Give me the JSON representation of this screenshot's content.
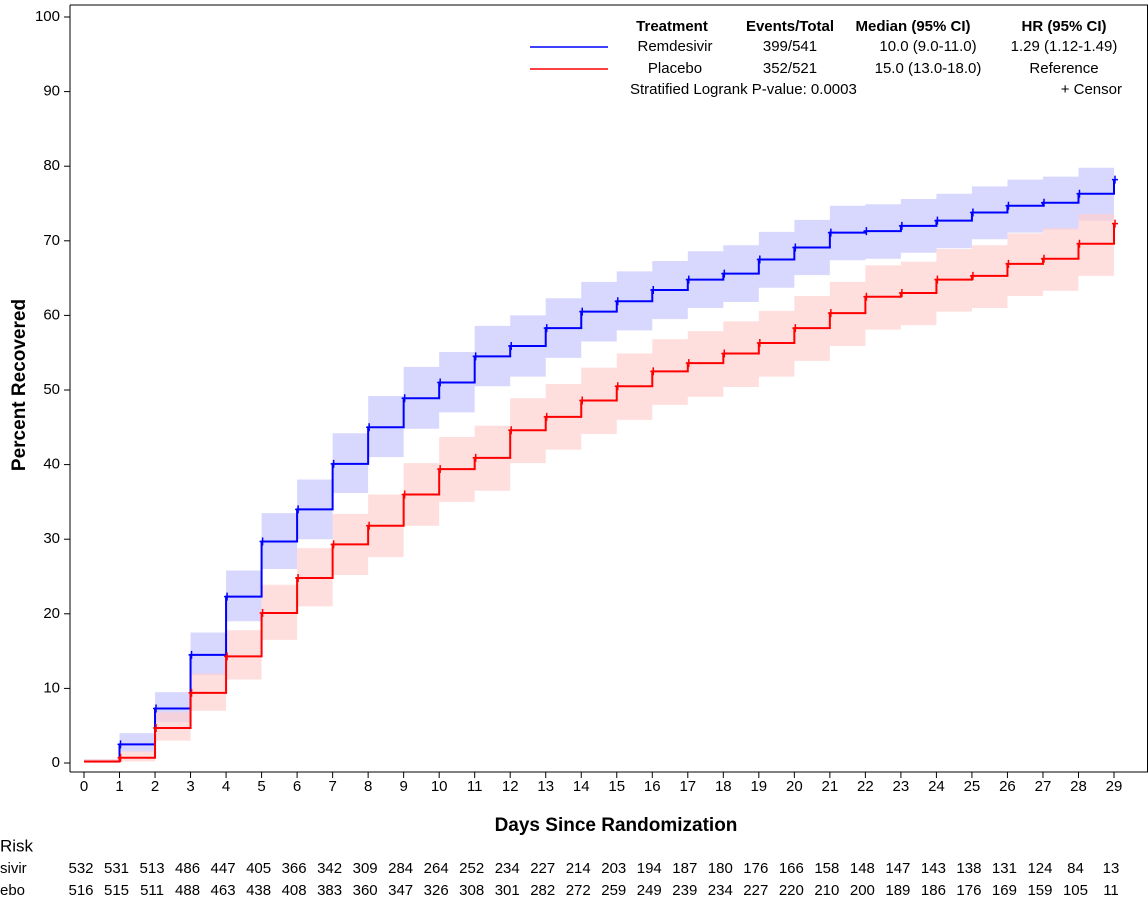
{
  "chart_data": {
    "type": "km",
    "xlabel": "Days Since Randomization",
    "ylabel": "Percent Recovered",
    "x": [
      0,
      1,
      2,
      3,
      4,
      5,
      6,
      7,
      8,
      9,
      10,
      11,
      12,
      13,
      14,
      15,
      16,
      17,
      18,
      19,
      20,
      21,
      22,
      23,
      24,
      25,
      26,
      27,
      28,
      29
    ],
    "xlim": [
      0,
      29
    ],
    "ylim": [
      0,
      100
    ],
    "xticks": [
      0,
      1,
      2,
      3,
      4,
      5,
      6,
      7,
      8,
      9,
      10,
      11,
      12,
      13,
      14,
      15,
      16,
      17,
      18,
      19,
      20,
      21,
      22,
      23,
      24,
      25,
      26,
      27,
      28,
      29
    ],
    "yticks": [
      0,
      10,
      20,
      30,
      40,
      50,
      60,
      70,
      80,
      90,
      100
    ],
    "legend_header": [
      "Treatment",
      "Events/Total",
      "Median (95% CI)",
      "HR (95% CI)"
    ],
    "pvalue_text": "Stratified Logrank P-value: 0.0003",
    "censor_text": "+ Censor",
    "series": [
      {
        "name": "Remdesivir",
        "color": "#0000ff",
        "band_color": "#c8c8ff",
        "events_total": "399/541",
        "median": "10.0 (9.0-11.0)",
        "hr": "1.29 (1.12-1.49)",
        "values": [
          0.2,
          2.5,
          7.3,
          14.5,
          22.3,
          29.7,
          34,
          40.1,
          45,
          48.9,
          51,
          54.5,
          55.9,
          58.3,
          60.5,
          61.9,
          63.4,
          64.8,
          65.6,
          67.5,
          69.1,
          71.1,
          71.3,
          72,
          72.7,
          73.8,
          74.7,
          75.1,
          76.3,
          78.2
        ],
        "lower": [
          0,
          1.5,
          5.5,
          11.8,
          19,
          26,
          30,
          36.2,
          41,
          44.8,
          47,
          50.5,
          51.8,
          54.3,
          56.5,
          58,
          59.5,
          61,
          61.8,
          63.7,
          65.4,
          67.4,
          67.6,
          68.4,
          69,
          70.2,
          71.1,
          71.5,
          72.7,
          74
        ],
        "upper": [
          0.5,
          4,
          9.5,
          17.5,
          25.8,
          33.5,
          38,
          44.2,
          49.2,
          53.1,
          55.1,
          58.6,
          60,
          62.3,
          64.5,
          65.9,
          67.3,
          68.6,
          69.4,
          71.2,
          72.8,
          74.7,
          74.9,
          75.6,
          76.3,
          77.3,
          78.2,
          78.6,
          79.8,
          82.5
        ]
      },
      {
        "name": "Placebo",
        "color": "#ff0000",
        "band_color": "#ffd0d0",
        "events_total": "352/521",
        "median": "15.0 (13.0-18.0)",
        "hr": "Reference",
        "values": [
          0.2,
          0.7,
          4.7,
          9.4,
          14.3,
          20.1,
          24.8,
          29.3,
          31.8,
          36,
          39.4,
          40.9,
          44.6,
          46.4,
          48.6,
          50.5,
          52.5,
          53.6,
          54.9,
          56.3,
          58.3,
          60.3,
          62.5,
          63,
          64.8,
          65.3,
          66.9,
          67.6,
          69.6,
          72.3
        ],
        "lower": [
          0,
          0.2,
          3,
          7,
          11.2,
          16.5,
          21,
          25.2,
          27.6,
          31.8,
          35,
          36.5,
          40.2,
          42,
          44.1,
          46,
          48,
          49.1,
          50.4,
          51.8,
          53.9,
          55.9,
          58.1,
          58.7,
          60.5,
          61,
          62.6,
          63.3,
          65.3,
          67.5
        ],
        "upper": [
          0.5,
          1.6,
          6.8,
          12,
          17.8,
          23.9,
          28.8,
          33.4,
          36,
          40.2,
          43.7,
          45.2,
          48.9,
          50.8,
          53,
          54.9,
          56.8,
          57.9,
          59.2,
          60.6,
          62.6,
          64.5,
          66.7,
          67.2,
          68.9,
          69.4,
          71,
          71.7,
          73.6,
          76
        ]
      }
    ],
    "risk_table": {
      "title": "Risk",
      "rows": [
        {
          "label": "sivir",
          "color": "#0000ff",
          "counts": [
            532,
            531,
            513,
            486,
            447,
            405,
            366,
            342,
            309,
            284,
            264,
            252,
            234,
            227,
            214,
            203,
            194,
            187,
            180,
            176,
            166,
            158,
            148,
            147,
            143,
            138,
            131,
            124,
            84,
            13
          ]
        },
        {
          "label": "ebo",
          "color": "#ff0000",
          "counts": [
            516,
            515,
            511,
            488,
            463,
            438,
            408,
            383,
            360,
            347,
            326,
            308,
            301,
            282,
            272,
            259,
            249,
            239,
            234,
            227,
            220,
            210,
            200,
            189,
            186,
            176,
            169,
            159,
            105,
            11
          ]
        }
      ]
    }
  }
}
